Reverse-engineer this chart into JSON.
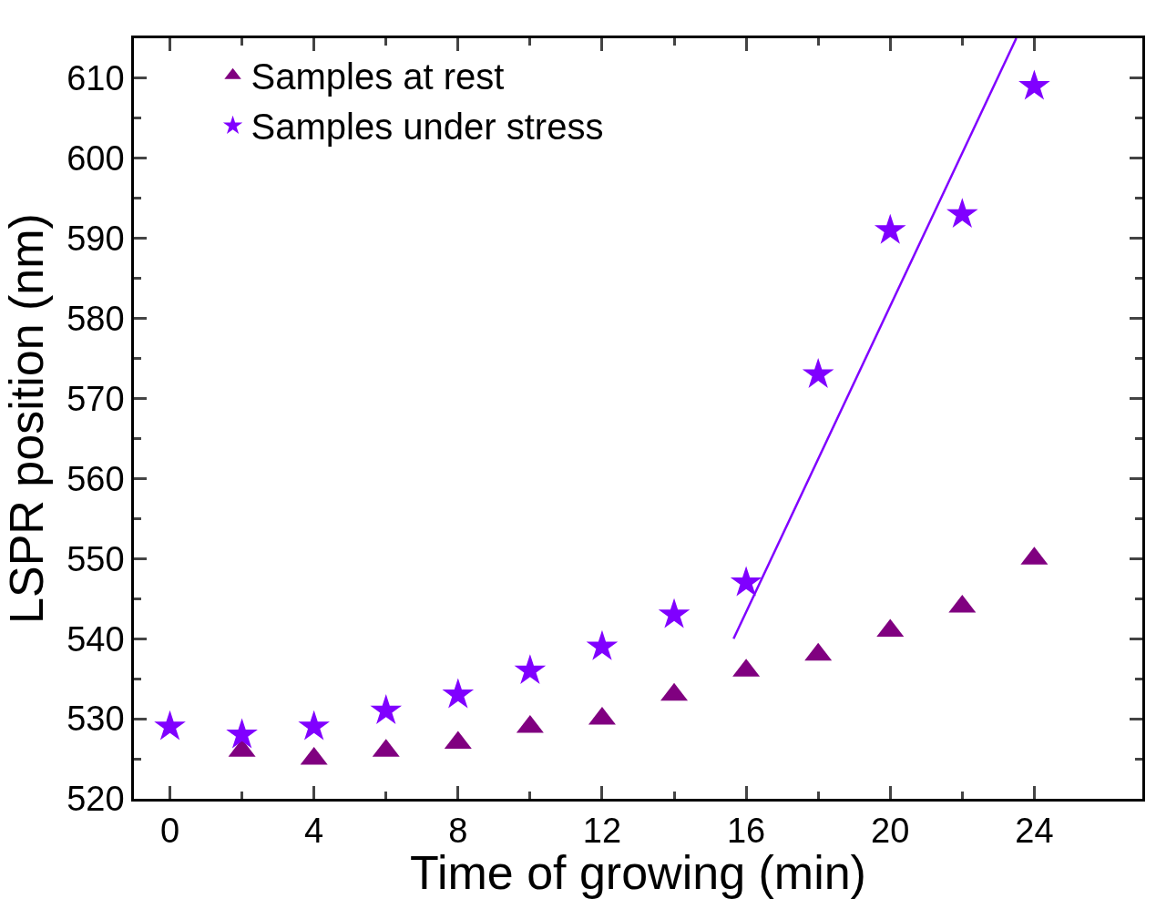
{
  "chart_data": {
    "type": "scatter",
    "xlabel": "Time of growing (min)",
    "ylabel": "LSPR position (nm)",
    "x": [
      0,
      2,
      4,
      6,
      8,
      10,
      12,
      14,
      16,
      18,
      20,
      22,
      24
    ],
    "series": [
      {
        "name": "Samples at rest",
        "color": "#800080",
        "marker": "triangle",
        "values": [
          null,
          526,
          525,
          526,
          527,
          529,
          530,
          533,
          536,
          538,
          541,
          544,
          550
        ]
      },
      {
        "name": "Samples under stress",
        "color": "#8000ff",
        "marker": "star",
        "values": [
          529,
          528,
          529,
          531,
          533,
          536,
          539,
          543,
          547,
          573,
          591,
          593,
          609
        ]
      },
      {
        "type": "line",
        "color": "#8000ff",
        "marker": "none",
        "x": [
          15.65,
          23.5
        ],
        "values": [
          540,
          615
        ]
      }
    ],
    "xlim": [
      -1,
      27
    ],
    "xticks": [
      0,
      4,
      8,
      12,
      16,
      20,
      24
    ],
    "ylim": [
      520,
      615
    ],
    "yticks": [
      520,
      530,
      540,
      550,
      560,
      570,
      580,
      590,
      600,
      610
    ],
    "legend": "top left"
  }
}
